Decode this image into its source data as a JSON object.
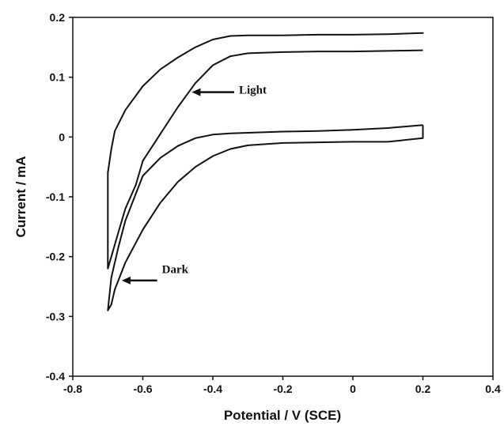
{
  "chart_data": {
    "type": "line",
    "xlabel": "Potential / V (SCE)",
    "ylabel": "Current / mA",
    "xlim": [
      -0.8,
      0.4
    ],
    "ylim": [
      -0.4,
      0.2
    ],
    "xticks": [
      "-0.8",
      "-0.6",
      "-0.4",
      "-0.2",
      "0",
      "0.2",
      "0.4"
    ],
    "yticks": [
      "0.2",
      "0.1",
      "0",
      "-0.1",
      "-0.2",
      "-0.3",
      "-0.4"
    ],
    "xtick_values": [
      -0.8,
      -0.6,
      -0.4,
      -0.2,
      0,
      0.2,
      0.4
    ],
    "ytick_values": [
      0.2,
      0.1,
      0,
      -0.1,
      -0.2,
      -0.3,
      -0.4
    ],
    "grid": false,
    "series": [
      {
        "name": "Light",
        "x": [
          0.2,
          0.2,
          0.1,
          0.0,
          -0.1,
          -0.2,
          -0.3,
          -0.35,
          -0.4,
          -0.45,
          -0.5,
          -0.55,
          -0.6,
          -0.65,
          -0.68,
          -0.69,
          -0.7,
          -0.7,
          -0.7,
          -0.69,
          -0.67,
          -0.65,
          -0.62,
          -0.6,
          -0.55,
          -0.5,
          -0.45,
          -0.4,
          -0.35,
          -0.3,
          -0.2,
          -0.1,
          0.0,
          0.1,
          0.2
        ],
        "y": [
          0.175,
          0.174,
          0.172,
          0.171,
          0.171,
          0.17,
          0.17,
          0.169,
          0.163,
          0.15,
          0.133,
          0.113,
          0.085,
          0.045,
          0.01,
          -0.02,
          -0.06,
          -0.14,
          -0.22,
          -0.2,
          -0.16,
          -0.12,
          -0.08,
          -0.04,
          0.005,
          0.05,
          0.09,
          0.12,
          0.135,
          0.14,
          0.142,
          0.143,
          0.143,
          0.144,
          0.145
        ]
      },
      {
        "name": "Dark",
        "x": [
          0.2,
          0.2,
          0.1,
          0.0,
          -0.1,
          -0.2,
          -0.3,
          -0.35,
          -0.4,
          -0.45,
          -0.5,
          -0.55,
          -0.6,
          -0.65,
          -0.68,
          -0.69,
          -0.7,
          -0.69,
          -0.67,
          -0.65,
          -0.6,
          -0.55,
          -0.5,
          -0.45,
          -0.4,
          -0.35,
          -0.3,
          -0.2,
          -0.1,
          0.0,
          0.1,
          0.2
        ],
        "y": [
          0.02,
          -0.002,
          -0.008,
          -0.008,
          -0.009,
          -0.01,
          -0.014,
          -0.02,
          -0.032,
          -0.05,
          -0.075,
          -0.11,
          -0.155,
          -0.21,
          -0.255,
          -0.28,
          -0.29,
          -0.235,
          -0.185,
          -0.14,
          -0.065,
          -0.035,
          -0.015,
          -0.002,
          0.004,
          0.006,
          0.007,
          0.009,
          0.01,
          0.012,
          0.015,
          0.02
        ]
      }
    ],
    "annotations": [
      {
        "text": "Light",
        "x": -0.33,
        "y": 0.07,
        "arrow_to": [
          -0.46,
          0.075
        ]
      },
      {
        "text": "Dark",
        "x": -0.55,
        "y": -0.23,
        "arrow_to": [
          -0.66,
          -0.24
        ]
      }
    ]
  }
}
